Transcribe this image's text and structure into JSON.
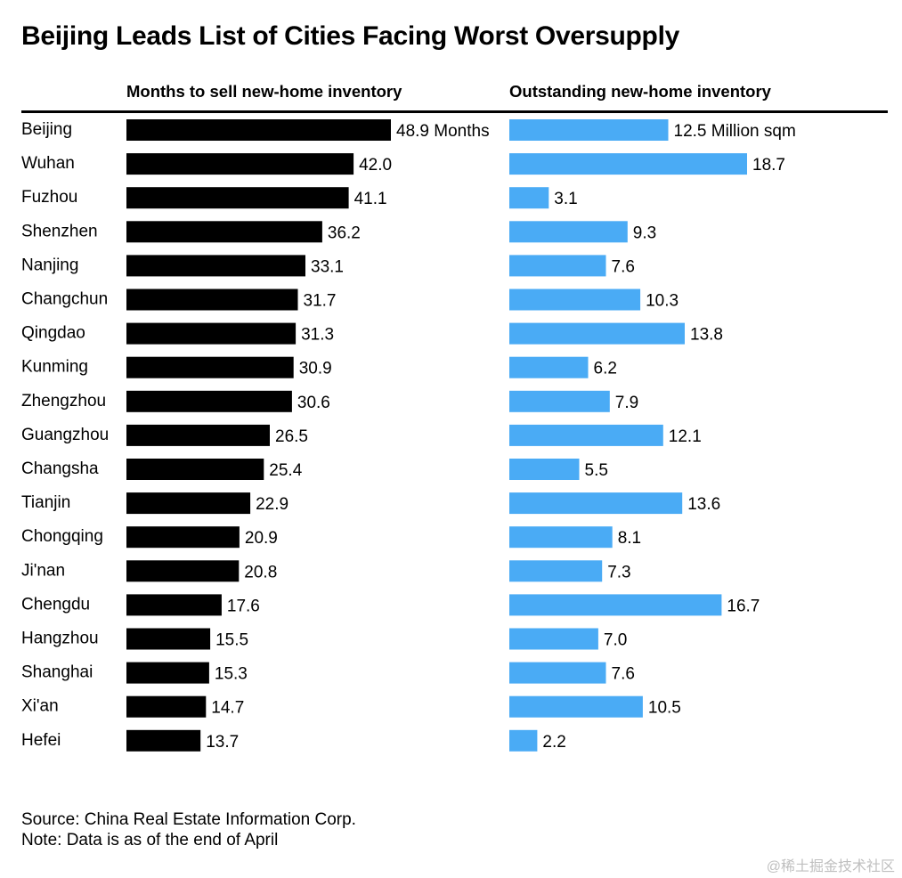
{
  "title": "Beijing Leads List of Cities Facing Worst Oversupply",
  "footer": {
    "source": "Source: China Real Estate Information Corp.",
    "note": "Note: Data is as of the end of April"
  },
  "watermark": "@稀土掘金技术社区",
  "chart_data": [
    {
      "type": "bar",
      "orientation": "horizontal",
      "title": "Months to sell new-home inventory",
      "color": "#000000",
      "first_label_suffix": " Months",
      "categories": [
        "Beijing",
        "Wuhan",
        "Fuzhou",
        "Shenzhen",
        "Nanjing",
        "Changchun",
        "Qingdao",
        "Kunming",
        "Zhengzhou",
        "Guangzhou",
        "Changsha",
        "Tianjin",
        "Chongqing",
        "Ji'nan",
        "Chengdu",
        "Hangzhou",
        "Shanghai",
        "Xi'an",
        "Hefei"
      ],
      "values": [
        48.9,
        42.0,
        41.1,
        36.2,
        33.1,
        31.7,
        31.3,
        30.9,
        30.6,
        26.5,
        25.4,
        22.9,
        20.9,
        20.8,
        17.6,
        15.5,
        15.3,
        14.7,
        13.7
      ],
      "xlim": [
        0,
        48.9
      ]
    },
    {
      "type": "bar",
      "orientation": "horizontal",
      "title": "Outstanding new-home inventory",
      "color": "#4aabf5",
      "first_label_suffix": " Million sqm",
      "categories": [
        "Beijing",
        "Wuhan",
        "Fuzhou",
        "Shenzhen",
        "Nanjing",
        "Changchun",
        "Qingdao",
        "Kunming",
        "Zhengzhou",
        "Guangzhou",
        "Changsha",
        "Tianjin",
        "Chongqing",
        "Ji'nan",
        "Chengdu",
        "Hangzhou",
        "Shanghai",
        "Xi'an",
        "Hefei"
      ],
      "values": [
        12.5,
        18.7,
        3.1,
        9.3,
        7.6,
        10.3,
        13.8,
        6.2,
        7.9,
        12.1,
        5.5,
        13.6,
        8.1,
        7.3,
        16.7,
        7.0,
        7.6,
        10.5,
        2.2
      ],
      "xlim": [
        0,
        18.7
      ]
    }
  ]
}
